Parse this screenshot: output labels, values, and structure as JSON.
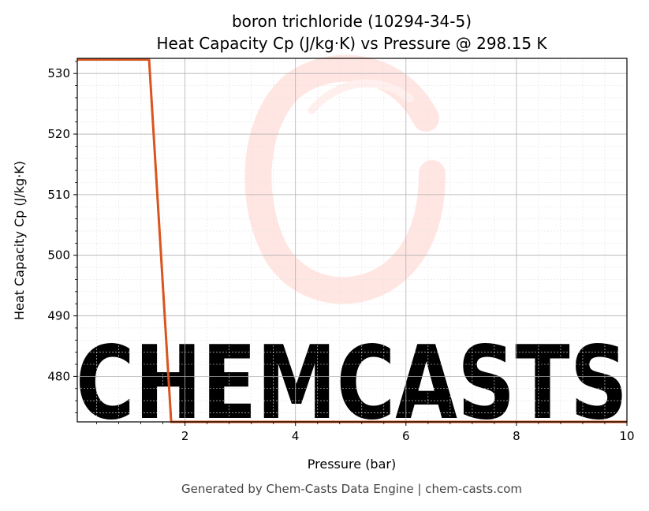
{
  "chart_data": {
    "type": "line",
    "title": "boron trichloride (10294-34-5)",
    "subtitle": "Heat Capacity Cp (J/kg·K) vs Pressure @ 298.15 K",
    "xlabel": "Pressure (bar)",
    "ylabel": "Heat Capacity Cp (J/kg·K)",
    "xlim": [
      0.05,
      10
    ],
    "ylim": [
      472.5,
      532.5
    ],
    "xticks": [
      2,
      4,
      6,
      8,
      10
    ],
    "yticks": [
      480,
      490,
      500,
      510,
      520,
      530
    ],
    "grid": true,
    "minor_grid": true,
    "series": [
      {
        "color": "#d9541e",
        "x": [
          0.05,
          1.35,
          1.75,
          10
        ],
        "y": [
          532.3,
          532.3,
          472.5,
          472.5
        ]
      }
    ]
  },
  "watermark": {
    "text": "CHEMCASTS",
    "color": "#ffe3df"
  },
  "footer": "Generated by Chem-Casts Data Engine | chem-casts.com"
}
